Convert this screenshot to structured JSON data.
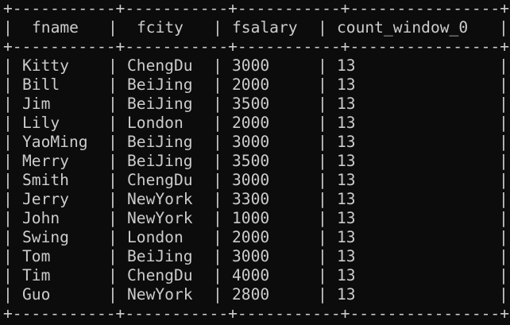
{
  "table": {
    "border_line": "+-----------+-----------+-----------+----------------+",
    "columns": [
      "fname",
      "fcity",
      "fsalary",
      "count_window_0"
    ],
    "rows": [
      [
        "Kitty",
        "ChengDu",
        "3000",
        "13"
      ],
      [
        "Bill",
        "BeiJing",
        "2000",
        "13"
      ],
      [
        "Jim",
        "BeiJing",
        "3500",
        "13"
      ],
      [
        "Lily",
        "London",
        "2000",
        "13"
      ],
      [
        "YaoMing",
        "BeiJing",
        "3000",
        "13"
      ],
      [
        "Merry",
        "BeiJing",
        "3500",
        "13"
      ],
      [
        "Smith",
        "ChengDu",
        "3000",
        "13"
      ],
      [
        "Jerry",
        "NewYork",
        "3300",
        "13"
      ],
      [
        "John",
        "NewYork",
        "1000",
        "13"
      ],
      [
        "Swing",
        "London",
        "2000",
        "13"
      ],
      [
        "Tom",
        "BeiJing",
        "3000",
        "13"
      ],
      [
        "Tim",
        "ChengDu",
        "4000",
        "13"
      ],
      [
        "Guo",
        "NewYork",
        "2800",
        "13"
      ]
    ]
  }
}
